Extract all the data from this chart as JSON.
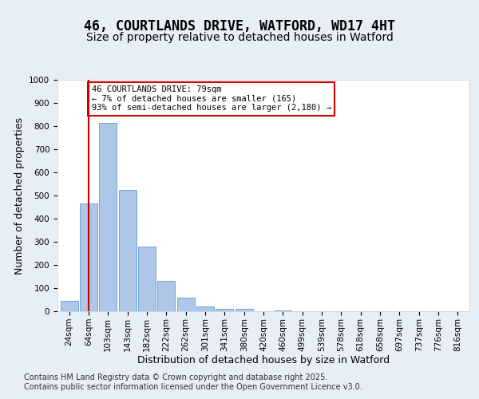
{
  "title": "46, COURTLANDS DRIVE, WATFORD, WD17 4HT",
  "subtitle": "Size of property relative to detached houses in Watford",
  "xlabel": "Distribution of detached houses by size in Watford",
  "ylabel": "Number of detached properties",
  "bar_values": [
    46,
    465,
    815,
    525,
    280,
    130,
    60,
    20,
    10,
    10,
    0,
    5,
    0,
    0,
    0,
    0,
    0,
    0,
    0,
    0,
    0
  ],
  "bar_labels": [
    "24sqm",
    "64sqm",
    "103sqm",
    "143sqm",
    "182sqm",
    "222sqm",
    "262sqm",
    "301sqm",
    "341sqm",
    "380sqm",
    "420sqm",
    "460sqm",
    "499sqm",
    "539sqm",
    "578sqm",
    "618sqm",
    "658sqm",
    "697sqm",
    "737sqm",
    "776sqm",
    "816sqm"
  ],
  "bar_color": "#aec6e8",
  "bar_edge_color": "#5a9fd4",
  "vline_x": 1,
  "vline_color": "#cc0000",
  "annotation_text": "46 COURTLANDS DRIVE: 79sqm\n← 7% of detached houses are smaller (165)\n93% of semi-detached houses are larger (2,180) →",
  "annotation_box_color": "#cc0000",
  "annotation_text_color": "#000000",
  "ylim": [
    0,
    1000
  ],
  "yticks": [
    0,
    100,
    200,
    300,
    400,
    500,
    600,
    700,
    800,
    900,
    1000
  ],
  "footnote": "Contains HM Land Registry data © Crown copyright and database right 2025.\nContains public sector information licensed under the Open Government Licence v3.0.",
  "background_color": "#e8eef5",
  "plot_background": "#ffffff",
  "grid_color": "#ffffff",
  "title_fontsize": 12,
  "subtitle_fontsize": 10,
  "xlabel_fontsize": 9,
  "ylabel_fontsize": 9,
  "tick_fontsize": 7.5,
  "footnote_fontsize": 7
}
